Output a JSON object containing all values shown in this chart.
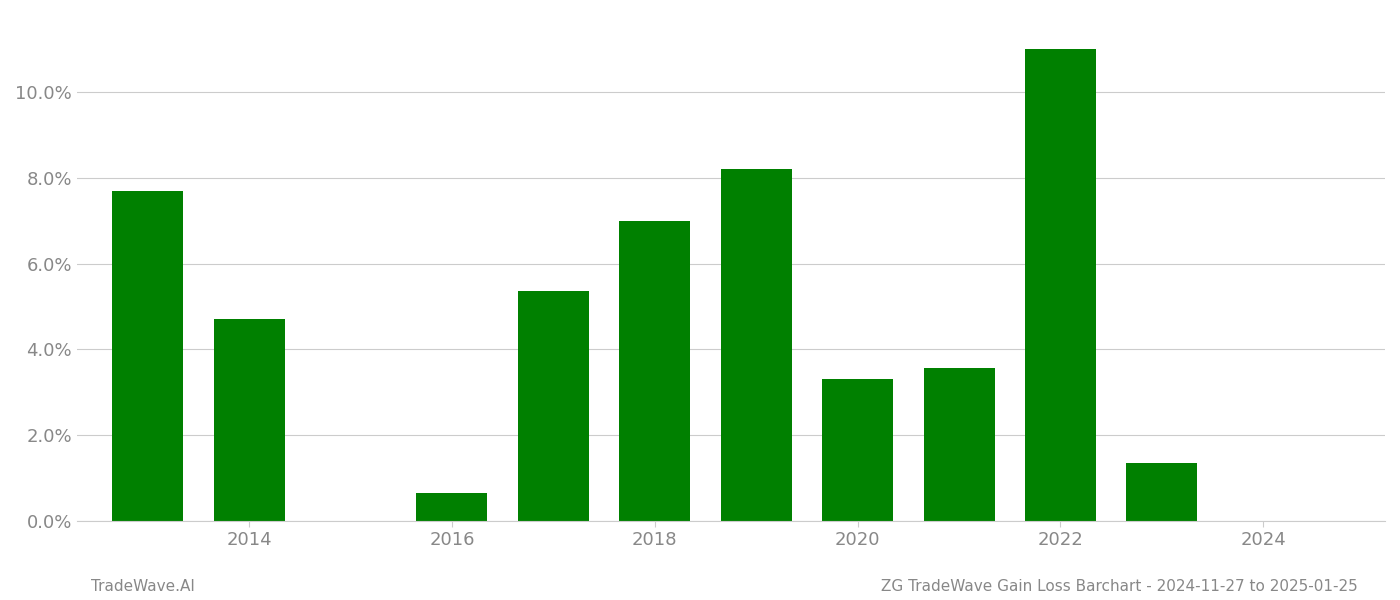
{
  "years": [
    2013,
    2014,
    2015,
    2016,
    2017,
    2018,
    2019,
    2020,
    2021,
    2022,
    2023,
    2024
  ],
  "values": [
    0.077,
    0.047,
    0.0,
    0.0065,
    0.0535,
    0.07,
    0.082,
    0.033,
    0.0355,
    0.11,
    0.0135,
    0.0
  ],
  "bar_color": "#008000",
  "background_color": "#ffffff",
  "grid_color": "#cccccc",
  "ylabel_color": "#888888",
  "xlabel_color": "#888888",
  "footer_left": "TradeWave.AI",
  "footer_right": "ZG TradeWave Gain Loss Barchart - 2024-11-27 to 2025-01-25",
  "footer_color": "#888888",
  "footer_fontsize": 11,
  "ylim": [
    0,
    0.118
  ],
  "yticks": [
    0.0,
    0.02,
    0.04,
    0.06,
    0.08,
    0.1
  ],
  "xticks": [
    2014,
    2016,
    2018,
    2020,
    2022,
    2024
  ],
  "xlim": [
    2012.3,
    2025.2
  ],
  "bar_width": 0.7
}
